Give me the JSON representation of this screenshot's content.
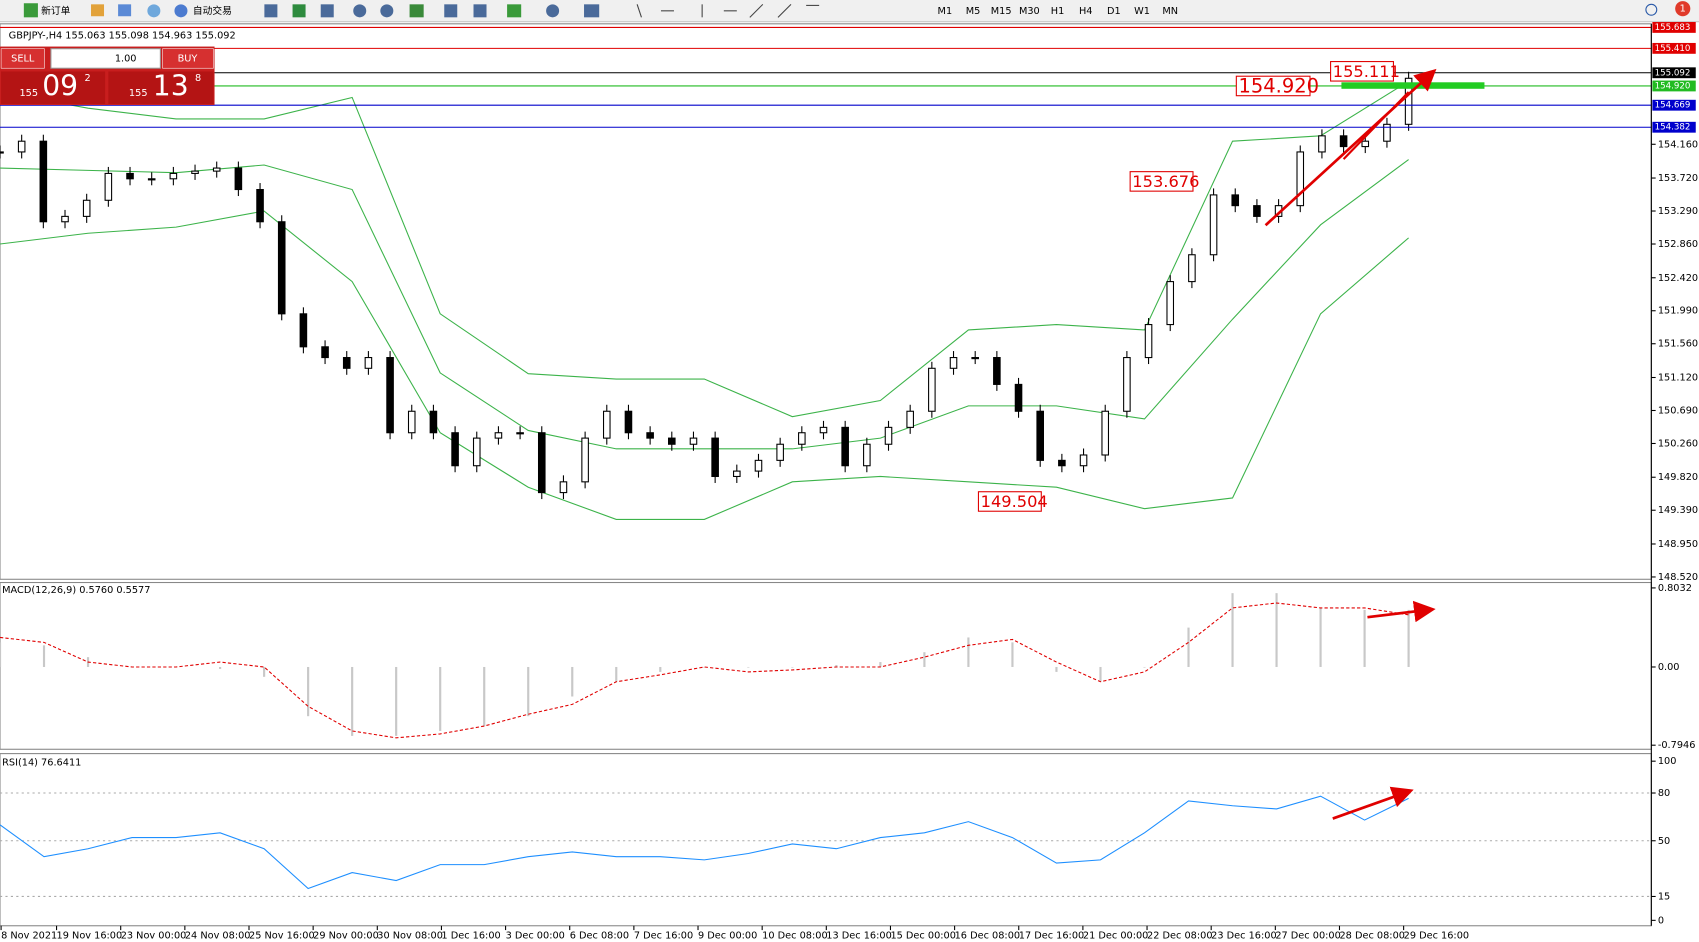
{
  "toolbar": {
    "new_order": "新订单",
    "auto_trading": "自动交易",
    "timeframes": [
      "M1",
      "M5",
      "M15",
      "M30",
      "H1",
      "H4",
      "D1",
      "W1",
      "MN"
    ],
    "notification": "1"
  },
  "trade_panel": {
    "sell": "SELL",
    "lots": "1.00",
    "buy": "BUY",
    "sell_price": {
      "prefix": "155",
      "big": "09",
      "small": "2"
    },
    "buy_price": {
      "prefix": "155",
      "big": "13",
      "small": "8"
    }
  },
  "price_chart": {
    "header": "GBPJPY-,H4 155.063 155.098 154.963 155.092",
    "ylim": [
      148.49,
      155.73
    ],
    "yticks": [
      {
        "value": 154.16,
        "label": "154.160"
      },
      {
        "value": 153.72,
        "label": "153.720"
      },
      {
        "value": 153.29,
        "label": "153.290"
      },
      {
        "value": 152.86,
        "label": "152.860"
      },
      {
        "value": 152.42,
        "label": "152.420"
      },
      {
        "value": 151.99,
        "label": "151.990"
      },
      {
        "value": 151.56,
        "label": "151.560"
      },
      {
        "value": 151.12,
        "label": "151.120"
      },
      {
        "value": 150.69,
        "label": "150.690"
      },
      {
        "value": 150.26,
        "label": "150.260"
      },
      {
        "value": 149.82,
        "label": "149.820"
      },
      {
        "value": 149.39,
        "label": "149.390"
      },
      {
        "value": 148.95,
        "label": "148.950"
      },
      {
        "value": 148.52,
        "label": "148.520"
      }
    ],
    "levels": [
      {
        "value": 155.683,
        "color": "#e00000"
      },
      {
        "value": 155.41,
        "label": "155.410",
        "color": "#e00000"
      },
      {
        "value": 155.092,
        "color": "#000000"
      },
      {
        "value": 154.92,
        "label": "154.920",
        "color": "#22bb22"
      },
      {
        "value": 154.669,
        "color": "#0000cc"
      },
      {
        "value": 154.382,
        "color": "#0000cc"
      }
    ],
    "annotations": [
      {
        "value": 154.92,
        "label": "154.920"
      },
      {
        "value": 155.111
      },
      {
        "value": 153.676
      },
      {
        "value": 149.504
      }
    ],
    "closes": [
      154.06,
      154.2,
      153.15,
      153.22,
      153.43,
      153.78,
      153.71,
      153.71,
      153.78,
      153.81,
      153.85,
      153.57,
      153.15,
      151.95,
      151.52,
      151.38,
      151.24,
      151.38,
      150.4,
      150.68,
      150.4,
      149.97,
      150.33,
      150.4,
      150.4,
      149.62,
      149.76,
      150.33,
      150.68,
      150.4,
      150.33,
      150.25,
      150.33,
      149.83,
      149.9,
      150.04,
      150.25,
      150.4,
      150.47,
      149.97,
      150.25,
      150.47,
      150.68,
      151.24,
      151.38,
      151.38,
      151.03,
      150.68,
      150.04,
      149.97,
      150.11,
      150.68,
      151.38,
      151.81,
      152.37,
      152.72,
      153.5,
      153.36,
      153.22,
      153.36,
      154.06,
      154.27,
      154.13,
      154.2,
      154.42,
      155.02
    ],
    "bollinger": {
      "upper": [
        154.84,
        154.63,
        154.49,
        154.49,
        154.77,
        151.95,
        151.17,
        151.1,
        151.1,
        150.61,
        150.82,
        151.74,
        151.81,
        151.74,
        154.2,
        154.27,
        154.98
      ],
      "middle": [
        153.85,
        153.82,
        153.79,
        153.89,
        153.57,
        151.18,
        150.43,
        150.19,
        150.19,
        150.19,
        150.33,
        150.75,
        150.75,
        150.58,
        151.88,
        153.11,
        153.96
      ],
      "lower": [
        152.86,
        153.0,
        153.08,
        153.29,
        152.37,
        150.4,
        149.69,
        149.27,
        149.27,
        149.76,
        149.83,
        149.76,
        149.69,
        149.41,
        149.55,
        151.95,
        152.94
      ]
    }
  },
  "macd": {
    "label": "MACD(12,26,9) 0.5760 0.5577",
    "ylim": [
      -0.836,
      0.858
    ],
    "yticks": [
      0.8032,
      {
        "value": 0,
        "label": "0.00"
      },
      -0.7946
    ],
    "histogram": [
      0.25,
      0.22,
      0.1,
      0,
      0,
      -0.02,
      -0.1,
      -0.5,
      -0.7,
      -0.7,
      -0.65,
      -0.6,
      -0.5,
      -0.3,
      -0.15,
      -0.05,
      0,
      0,
      0,
      0.02,
      0.05,
      0.15,
      0.3,
      0.25,
      -0.05,
      -0.15,
      0,
      0.4,
      0.75,
      0.75,
      0.6,
      0.58,
      0.58
    ],
    "signal": [
      0.3,
      0.25,
      0.05,
      0,
      0,
      0.05,
      0,
      -0.4,
      -0.65,
      -0.72,
      -0.68,
      -0.6,
      -0.48,
      -0.38,
      -0.15,
      -0.08,
      0,
      -0.05,
      -0.03,
      0,
      0,
      0.1,
      0.22,
      0.28,
      0.05,
      -0.15,
      -0.05,
      0.25,
      0.6,
      0.65,
      0.6,
      0.6,
      0.53
    ]
  },
  "rsi": {
    "label": "RSI(14) 76.6411",
    "ylim": [
      0,
      100
    ],
    "yticks": [
      100,
      80,
      50,
      15,
      0
    ],
    "values": [
      60,
      40,
      45,
      52,
      52,
      55,
      45,
      20,
      30,
      25,
      35,
      35,
      40,
      43,
      40,
      40,
      38,
      42,
      48,
      45,
      52,
      55,
      62,
      52,
      36,
      38,
      55,
      75,
      72,
      70,
      78,
      63,
      76.64
    ]
  },
  "time_labels": [
    "8 Nov 2021",
    "19 Nov 16:00",
    "23 Nov 00:00",
    "24 Nov 08:00",
    "25 Nov 16:00",
    "29 Nov 00:00",
    "30 Nov 08:00",
    "1 Dec 16:00",
    "3 Dec 00:00",
    "6 Dec 08:00",
    "7 Dec 16:00",
    "9 Dec 00:00",
    "10 Dec 08:00",
    "13 Dec 16:00",
    "15 Dec 00:00",
    "16 Dec 08:00",
    "17 Dec 16:00",
    "21 Dec 00:00",
    "22 Dec 08:00",
    "23 Dec 16:00",
    "27 Dec 00:00",
    "28 Dec 08:00",
    "29 Dec 16:00"
  ]
}
